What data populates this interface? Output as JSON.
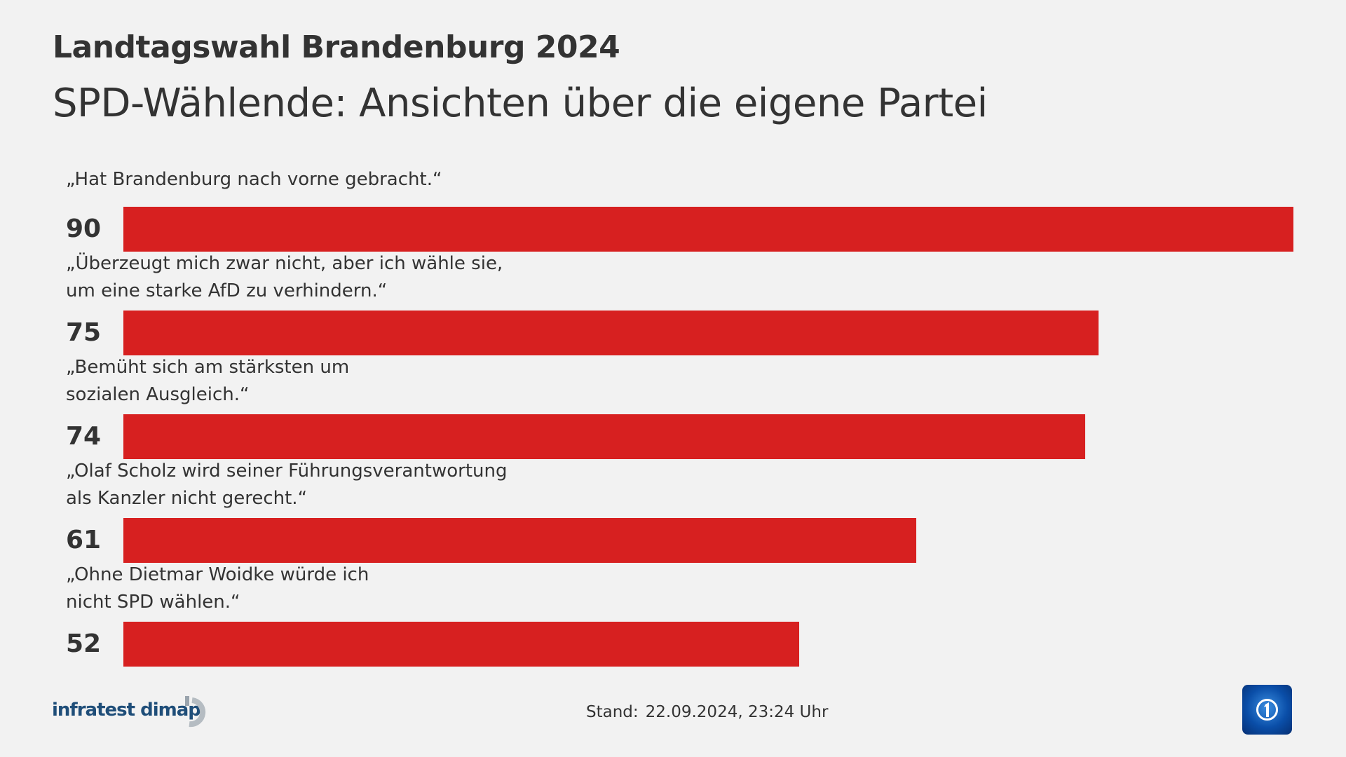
{
  "header": {
    "title": "Landtagswahl Brandenburg 2024",
    "subtitle": "SPD-Wählende: Ansichten über die eigene Partei"
  },
  "chart_data": {
    "type": "bar",
    "orientation": "horizontal",
    "categories": [
      "„Hat Brandenburg nach vorne gebracht.“",
      "„Überzeugt mich zwar nicht, aber ich wähle sie,\num eine starke AfD zu verhindern.“",
      "„Bemüht sich am stärksten um\nsozialen Ausgleich.“",
      "„Olaf Scholz wird seiner Führungsverantwortung\nals Kanzler nicht gerecht.“",
      "„Ohne Dietmar Woidke würde ich\nnicht SPD wählen.“"
    ],
    "values": [
      90,
      75,
      74,
      61,
      52
    ],
    "value_labels": [
      "90",
      "75",
      "74",
      "61",
      "52"
    ],
    "bar_color": "#d72020",
    "xlim": [
      0,
      90
    ],
    "grid": false
  },
  "footer": {
    "source": "infratest dimap",
    "stand_label": "Stand:",
    "stand_value": "22.09.2024, 23:24 Uhr",
    "logo": "ard-das-erste-logo"
  }
}
